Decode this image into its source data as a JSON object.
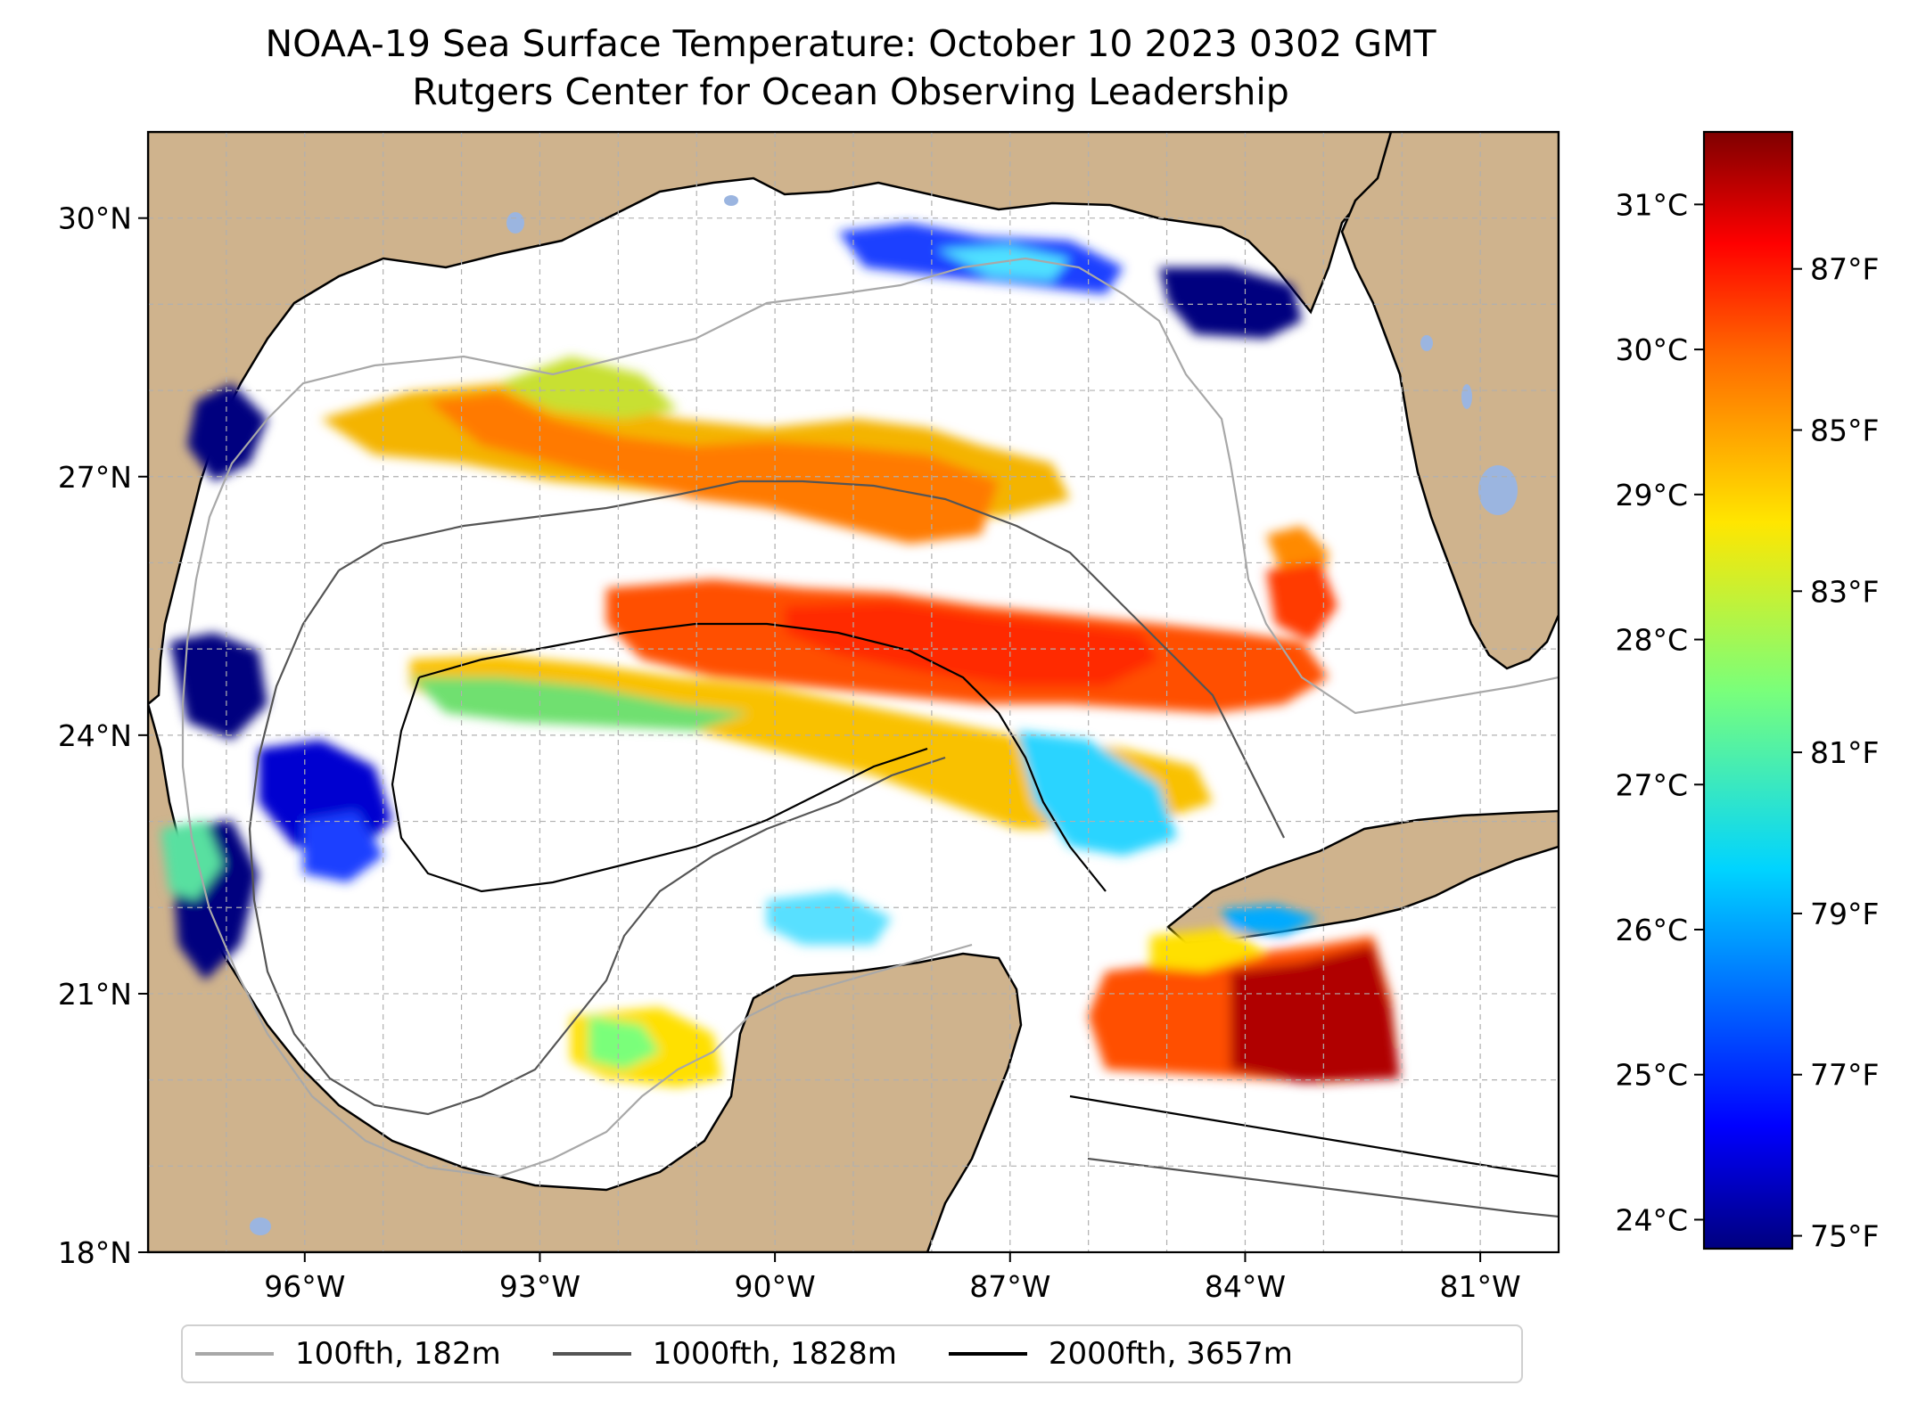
{
  "title": {
    "line1": "NOAA-19 Sea Surface Temperature: October 10 2023 0302 GMT",
    "line2": "Rutgers Center for Ocean Observing Leadership"
  },
  "map": {
    "lon_range": [
      -98,
      -80
    ],
    "lat_range": [
      18,
      31
    ],
    "lat_ticks": [
      {
        "value": 18,
        "label": "18°N"
      },
      {
        "value": 21,
        "label": "21°N"
      },
      {
        "value": 24,
        "label": "24°N"
      },
      {
        "value": 27,
        "label": "27°N"
      },
      {
        "value": 30,
        "label": "30°N"
      }
    ],
    "lon_ticks": [
      {
        "value": -96,
        "label": "96°W"
      },
      {
        "value": -93,
        "label": "93°W"
      },
      {
        "value": -90,
        "label": "90°W"
      },
      {
        "value": -87,
        "label": "87°W"
      },
      {
        "value": -84,
        "label": "84°W"
      },
      {
        "value": -81,
        "label": "81°W"
      }
    ],
    "gridlines": true,
    "colors": {
      "land": "#cfb38d",
      "ocean": "#ffffff",
      "lakes": "#9bb5e0",
      "coastline": "#000000",
      "grid": "#b0b0b0"
    }
  },
  "colorbar": {
    "colormap": "jet",
    "celsius_range": [
      23.8,
      31.5
    ],
    "celsius_ticks": [
      {
        "value": 24,
        "label": "24°C"
      },
      {
        "value": 25,
        "label": "25°C"
      },
      {
        "value": 26,
        "label": "26°C"
      },
      {
        "value": 27,
        "label": "27°C"
      },
      {
        "value": 28,
        "label": "28°C"
      },
      {
        "value": 29,
        "label": "29°C"
      },
      {
        "value": 30,
        "label": "30°C"
      },
      {
        "value": 31,
        "label": "31°C"
      }
    ],
    "fahrenheit_ticks": [
      {
        "value": 75,
        "label": "75°F"
      },
      {
        "value": 77,
        "label": "77°F"
      },
      {
        "value": 79,
        "label": "79°F"
      },
      {
        "value": 81,
        "label": "81°F"
      },
      {
        "value": 83,
        "label": "83°F"
      },
      {
        "value": 85,
        "label": "85°F"
      },
      {
        "value": 87,
        "label": "87°F"
      }
    ]
  },
  "legend": {
    "placement": "bottom-center",
    "items": [
      {
        "label": "100fth, 182m",
        "color": "#a8a8a8"
      },
      {
        "label": "1000fth, 1828m",
        "color": "#555555"
      },
      {
        "label": "2000fth, 3657m",
        "color": "#000000"
      }
    ]
  }
}
